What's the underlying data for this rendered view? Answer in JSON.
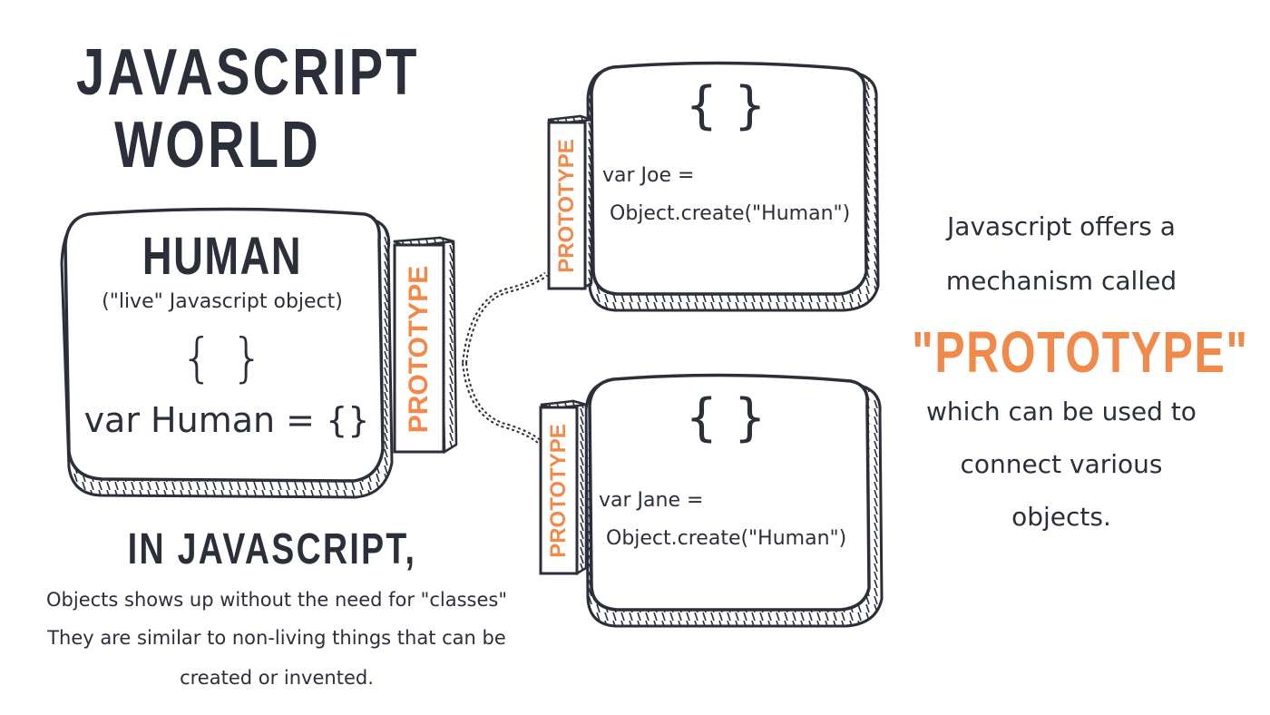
{
  "header": {
    "title_line1": "JAVASCRIPT",
    "title_line2": "WORLD"
  },
  "human_box": {
    "name": "HUMAN",
    "subtitle": "(\"live\" Javascript object)",
    "braces": "{ }",
    "code": "var Human = {}",
    "prototype_label": "PROTOTYPE"
  },
  "joe_box": {
    "braces": "{ }",
    "code_line1": "var Joe =",
    "code_line2": "Object.create(\"Human\")",
    "prototype_label": "PROTOTYPE"
  },
  "jane_box": {
    "braces": "{ }",
    "code_line1": "var Jane =",
    "code_line2": "Object.create(\"Human\")",
    "prototype_label": "PROTOTYPE"
  },
  "footer": {
    "heading": "IN JAVASCRIPT,",
    "line1": "Objects shows up without the need for \"classes\"",
    "line2": "They are similar to non-living things that can be",
    "line3": "created or invented."
  },
  "side_note": {
    "line1": "Javascript offers a",
    "line2": "mechanism called",
    "highlight": "\"PROTOTYPE\"",
    "line3": "which can be used to",
    "line4": "connect various",
    "line5": "objects."
  },
  "colors": {
    "ink": "#2b2f3a",
    "accent": "#f0894a",
    "background": "#ffffff"
  }
}
